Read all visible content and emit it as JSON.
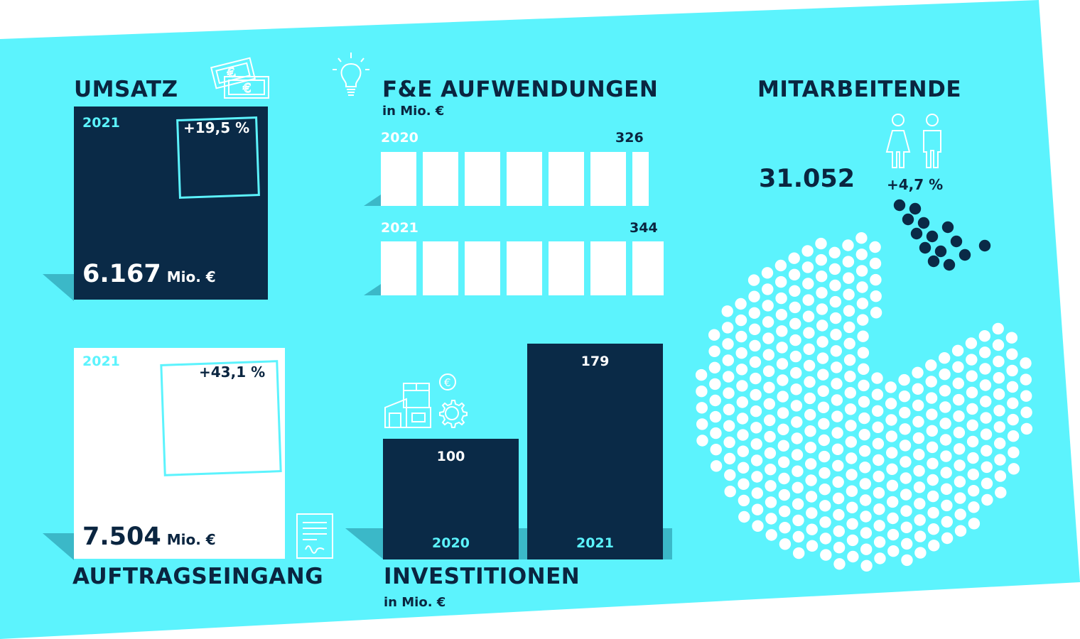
{
  "colors": {
    "background": "#5cf3fd",
    "navy": "#0a2a47",
    "shadow": "#3bb8c8",
    "white": "#ffffff"
  },
  "umsatz": {
    "title": "UMSATZ",
    "year": "2021",
    "change": "+19,5 %",
    "value": "6.167",
    "unit": "Mio. €",
    "icon": "euro-banknotes-icon"
  },
  "auftragseingang": {
    "title": "AUFTRAGSEINGANG",
    "year": "2021",
    "change": "+43,1 %",
    "value": "7.504",
    "unit": "Mio. €",
    "icon": "contract-document-icon"
  },
  "fe": {
    "title": "F&E AUFWENDUNGEN",
    "subtitle": "in Mio. €",
    "icon": "lightbulb-icon",
    "rows": [
      {
        "year": "2020",
        "value": "326"
      },
      {
        "year": "2021",
        "value": "344"
      }
    ]
  },
  "investitionen": {
    "title": "INVESTITIONEN",
    "subtitle": "in Mio.  €",
    "icon": "factory-gear-icon",
    "bars": [
      {
        "year": "2020",
        "value": "100"
      },
      {
        "year": "2021",
        "value": "179"
      }
    ]
  },
  "mitarbeitende": {
    "title": "MITARBEITENDE",
    "value": "31.052",
    "change": "+4,7 %",
    "icon": "people-icon"
  },
  "chart_data": [
    {
      "type": "bar",
      "title": "UMSATZ",
      "categories": [
        "2021"
      ],
      "values": [
        6167
      ],
      "unit": "Mio. €",
      "change_percent": 19.5
    },
    {
      "type": "bar",
      "title": "AUFTRAGSEINGANG",
      "categories": [
        "2021"
      ],
      "values": [
        7504
      ],
      "unit": "Mio. €",
      "change_percent": 43.1
    },
    {
      "type": "bar",
      "title": "F&E AUFWENDUNGEN",
      "categories": [
        "2020",
        "2021"
      ],
      "values": [
        326,
        344
      ],
      "unit": "Mio. €"
    },
    {
      "type": "bar",
      "title": "INVESTITIONEN",
      "categories": [
        "2020",
        "2021"
      ],
      "values": [
        100,
        179
      ],
      "unit": "Mio. €"
    },
    {
      "type": "scatter",
      "title": "MITARBEITENDE",
      "values": [
        31052
      ],
      "change_percent": 4.7
    }
  ]
}
